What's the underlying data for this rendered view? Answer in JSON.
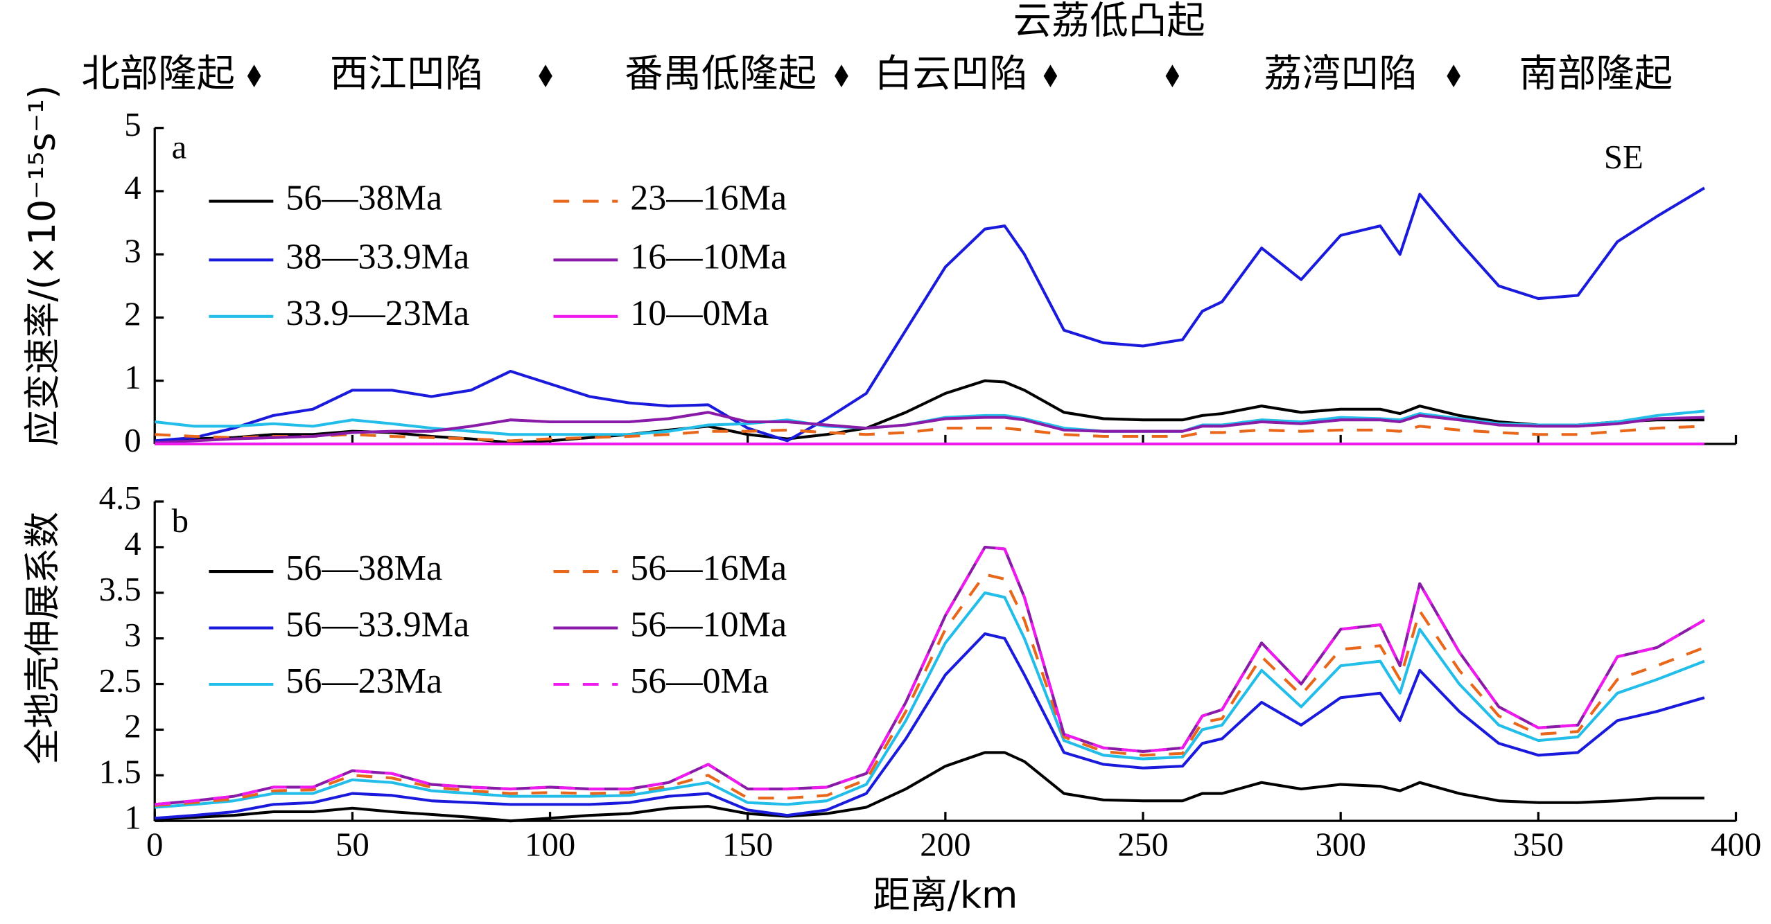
{
  "header": {
    "regions": [
      "北部隆起",
      "西江凹陷",
      "番禺低隆起",
      "白云凹陷",
      "云荔低凸起",
      "荔湾凹陷",
      "南部隆起"
    ]
  },
  "chart_data": [
    {
      "type": "line",
      "label": "a",
      "annotation": "SE",
      "ylabel": "应变速率/(×10⁻¹⁵s⁻¹)",
      "xlim": [
        0,
        400
      ],
      "xticks": [
        0,
        50,
        100,
        150,
        200,
        250,
        300,
        350,
        400
      ],
      "ylim": [
        0,
        5
      ],
      "yticks": [
        0,
        1,
        2,
        3,
        4,
        5
      ],
      "x": [
        0,
        10,
        20,
        30,
        40,
        50,
        60,
        70,
        80,
        90,
        100,
        110,
        120,
        130,
        140,
        150,
        160,
        170,
        180,
        190,
        200,
        210,
        215,
        220,
        230,
        240,
        250,
        260,
        265,
        270,
        280,
        290,
        300,
        310,
        315,
        320,
        330,
        340,
        350,
        360,
        370,
        380,
        392
      ],
      "series": [
        {
          "name": "56—38Ma",
          "color": "#000000",
          "linestyle": "solid",
          "values": [
            0.05,
            0.08,
            0.1,
            0.15,
            0.15,
            0.2,
            0.18,
            0.12,
            0.08,
            0.02,
            0.05,
            0.1,
            0.15,
            0.22,
            0.28,
            0.15,
            0.08,
            0.15,
            0.25,
            0.5,
            0.8,
            1.0,
            0.98,
            0.85,
            0.5,
            0.4,
            0.38,
            0.38,
            0.45,
            0.48,
            0.6,
            0.5,
            0.55,
            0.55,
            0.48,
            0.6,
            0.45,
            0.35,
            0.3,
            0.3,
            0.35,
            0.38,
            0.38
          ]
        },
        {
          "name": "38—33.9Ma",
          "color": "#1a1adc",
          "linestyle": "solid",
          "values": [
            0.05,
            0.1,
            0.25,
            0.45,
            0.55,
            0.85,
            0.85,
            0.75,
            0.85,
            1.15,
            0.95,
            0.75,
            0.65,
            0.6,
            0.62,
            0.25,
            0.05,
            0.4,
            0.8,
            1.8,
            2.8,
            3.4,
            3.45,
            3.0,
            1.8,
            1.6,
            1.55,
            1.65,
            2.1,
            2.25,
            3.1,
            2.6,
            3.3,
            3.45,
            3.0,
            3.95,
            3.2,
            2.5,
            2.3,
            2.35,
            3.2,
            3.6,
            4.05
          ]
        },
        {
          "name": "33.9—23Ma",
          "color": "#22bde8",
          "linestyle": "solid",
          "values": [
            0.35,
            0.28,
            0.28,
            0.32,
            0.28,
            0.38,
            0.32,
            0.25,
            0.2,
            0.15,
            0.15,
            0.15,
            0.15,
            0.2,
            0.3,
            0.32,
            0.38,
            0.28,
            0.25,
            0.3,
            0.42,
            0.45,
            0.45,
            0.4,
            0.25,
            0.2,
            0.2,
            0.2,
            0.3,
            0.3,
            0.38,
            0.35,
            0.42,
            0.4,
            0.38,
            0.48,
            0.4,
            0.32,
            0.3,
            0.3,
            0.35,
            0.45,
            0.52
          ]
        },
        {
          "name": "23—16Ma",
          "color": "#e8671a",
          "linestyle": "dashed",
          "values": [
            0.15,
            0.12,
            0.1,
            0.12,
            0.12,
            0.15,
            0.12,
            0.1,
            0.08,
            0.05,
            0.08,
            0.1,
            0.12,
            0.15,
            0.2,
            0.2,
            0.22,
            0.18,
            0.15,
            0.18,
            0.25,
            0.25,
            0.25,
            0.22,
            0.15,
            0.12,
            0.12,
            0.12,
            0.18,
            0.18,
            0.22,
            0.2,
            0.22,
            0.22,
            0.2,
            0.28,
            0.22,
            0.18,
            0.15,
            0.15,
            0.2,
            0.25,
            0.28
          ]
        },
        {
          "name": "16—10Ma",
          "color": "#8a1aa8",
          "linestyle": "solid",
          "values": [
            0.02,
            0.05,
            0.08,
            0.1,
            0.12,
            0.18,
            0.2,
            0.2,
            0.28,
            0.38,
            0.35,
            0.35,
            0.35,
            0.4,
            0.5,
            0.35,
            0.35,
            0.3,
            0.25,
            0.3,
            0.4,
            0.42,
            0.42,
            0.38,
            0.22,
            0.2,
            0.2,
            0.2,
            0.28,
            0.28,
            0.35,
            0.32,
            0.38,
            0.38,
            0.35,
            0.45,
            0.38,
            0.3,
            0.28,
            0.28,
            0.32,
            0.4,
            0.42
          ]
        },
        {
          "name": "10—0Ma",
          "color": "#ee1aee",
          "linestyle": "solid",
          "values": [
            0,
            0,
            0,
            0,
            0,
            0,
            0,
            0,
            0,
            0,
            0,
            0,
            0,
            0,
            0,
            0,
            0,
            0,
            0,
            0,
            0,
            0,
            0,
            0,
            0,
            0,
            0,
            0,
            0,
            0,
            0,
            0,
            0,
            0,
            0,
            0,
            0,
            0,
            0,
            0,
            0,
            0,
            0
          ]
        }
      ]
    },
    {
      "type": "line",
      "label": "b",
      "ylabel": "全地壳伸展系数",
      "xlabel": "距离/km",
      "xlim": [
        0,
        400
      ],
      "xticks": [
        0,
        50,
        100,
        150,
        200,
        250,
        300,
        350,
        400
      ],
      "ylim": [
        1,
        4.5
      ],
      "yticks": [
        1,
        1.5,
        2,
        2.5,
        3,
        3.5,
        4,
        4.5
      ],
      "x": [
        0,
        10,
        20,
        30,
        40,
        50,
        60,
        70,
        80,
        90,
        100,
        110,
        120,
        130,
        140,
        150,
        160,
        170,
        180,
        190,
        200,
        210,
        215,
        220,
        230,
        240,
        250,
        260,
        265,
        270,
        280,
        290,
        300,
        310,
        315,
        320,
        330,
        340,
        350,
        360,
        370,
        380,
        392
      ],
      "series": [
        {
          "name": "56—38Ma",
          "color": "#000000",
          "linestyle": "solid",
          "values": [
            1.02,
            1.04,
            1.06,
            1.1,
            1.1,
            1.14,
            1.1,
            1.07,
            1.04,
            1.0,
            1.03,
            1.06,
            1.08,
            1.14,
            1.16,
            1.08,
            1.05,
            1.08,
            1.15,
            1.35,
            1.6,
            1.75,
            1.75,
            1.65,
            1.3,
            1.23,
            1.22,
            1.22,
            1.3,
            1.3,
            1.42,
            1.35,
            1.4,
            1.38,
            1.33,
            1.42,
            1.3,
            1.22,
            1.2,
            1.2,
            1.22,
            1.25,
            1.25
          ]
        },
        {
          "name": "56—33.9Ma",
          "color": "#1a1adc",
          "linestyle": "solid",
          "values": [
            1.03,
            1.06,
            1.1,
            1.18,
            1.2,
            1.3,
            1.28,
            1.22,
            1.2,
            1.18,
            1.18,
            1.18,
            1.2,
            1.27,
            1.3,
            1.12,
            1.06,
            1.12,
            1.3,
            1.9,
            2.6,
            3.05,
            3.0,
            2.6,
            1.75,
            1.62,
            1.58,
            1.6,
            1.85,
            1.9,
            2.3,
            2.05,
            2.35,
            2.4,
            2.1,
            2.65,
            2.2,
            1.85,
            1.72,
            1.75,
            2.1,
            2.2,
            2.35
          ]
        },
        {
          "name": "56—23Ma",
          "color": "#22bde8",
          "linestyle": "solid",
          "values": [
            1.15,
            1.18,
            1.22,
            1.3,
            1.3,
            1.45,
            1.42,
            1.33,
            1.3,
            1.27,
            1.27,
            1.27,
            1.28,
            1.35,
            1.42,
            1.2,
            1.18,
            1.22,
            1.4,
            2.1,
            2.95,
            3.5,
            3.45,
            3.0,
            1.88,
            1.72,
            1.68,
            1.7,
            2.0,
            2.05,
            2.65,
            2.25,
            2.7,
            2.75,
            2.4,
            3.1,
            2.5,
            2.05,
            1.88,
            1.92,
            2.4,
            2.55,
            2.75
          ]
        },
        {
          "name": "56—16Ma",
          "color": "#e8671a",
          "linestyle": "dashed",
          "values": [
            1.17,
            1.2,
            1.24,
            1.33,
            1.34,
            1.5,
            1.47,
            1.37,
            1.33,
            1.3,
            1.31,
            1.3,
            1.31,
            1.38,
            1.5,
            1.25,
            1.25,
            1.28,
            1.45,
            2.2,
            3.1,
            3.7,
            3.65,
            3.2,
            1.92,
            1.76,
            1.72,
            1.74,
            2.08,
            2.12,
            2.8,
            2.38,
            2.88,
            2.92,
            2.55,
            3.3,
            2.65,
            2.15,
            1.95,
            1.98,
            2.55,
            2.7,
            2.9
          ]
        },
        {
          "name": "56—10Ma",
          "color": "#8a1aa8",
          "linestyle": "solid",
          "values": [
            1.18,
            1.22,
            1.27,
            1.37,
            1.37,
            1.55,
            1.52,
            1.4,
            1.37,
            1.35,
            1.37,
            1.35,
            1.35,
            1.42,
            1.62,
            1.35,
            1.35,
            1.37,
            1.52,
            2.3,
            3.25,
            4.0,
            3.98,
            3.45,
            1.95,
            1.8,
            1.76,
            1.8,
            2.15,
            2.22,
            2.95,
            2.5,
            3.1,
            3.15,
            2.7,
            3.6,
            2.85,
            2.25,
            2.02,
            2.05,
            2.8,
            2.9,
            3.2
          ]
        },
        {
          "name": "56—0Ma",
          "color": "#ee1aee",
          "linestyle": "dashed",
          "values": [
            1.18,
            1.22,
            1.27,
            1.37,
            1.37,
            1.55,
            1.52,
            1.4,
            1.37,
            1.35,
            1.37,
            1.35,
            1.35,
            1.42,
            1.62,
            1.35,
            1.35,
            1.37,
            1.52,
            2.3,
            3.25,
            4.0,
            3.98,
            3.45,
            1.95,
            1.8,
            1.76,
            1.8,
            2.15,
            2.22,
            2.95,
            2.5,
            3.1,
            3.15,
            2.7,
            3.6,
            2.85,
            2.25,
            2.02,
            2.05,
            2.8,
            2.9,
            3.2
          ]
        }
      ]
    }
  ]
}
